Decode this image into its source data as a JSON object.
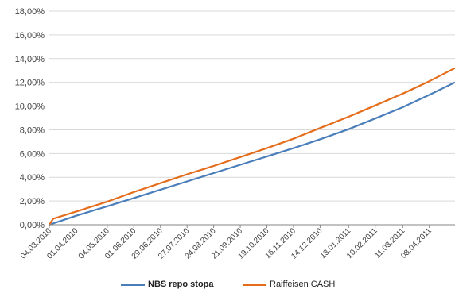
{
  "chart_data": {
    "type": "line",
    "y_ticks": [
      "0,00%",
      "2,00%",
      "4,00%",
      "6,00%",
      "8,00%",
      "10,00%",
      "12,00%",
      "14,00%",
      "16,00%",
      "18,00%"
    ],
    "ylim": [
      0,
      18
    ],
    "x_ticks": [
      "04.03.2010",
      "01.04.2010",
      "04.05.2010",
      "01.06.2010",
      "29.06.2010",
      "27.07.2010",
      "24.08.2010",
      "21.09.2010",
      "19.10.2010",
      "16.11.2010",
      "14.12.2010",
      "13.01.2011",
      "10.02.2011",
      "11.03.2011",
      "08.04.2011"
    ],
    "xlim": [
      "2010-03-04",
      "2011-05-05"
    ],
    "grid": true,
    "legend_position": "bottom",
    "series": [
      {
        "name": "NBS repo stopa",
        "color": "#4a7ebb",
        "x": [
          "2010-03-04",
          "2010-04-01",
          "2010-05-04",
          "2010-06-01",
          "2010-06-29",
          "2010-07-27",
          "2010-08-24",
          "2010-09-21",
          "2010-10-19",
          "2010-11-16",
          "2010-12-14",
          "2011-01-13",
          "2011-02-10",
          "2011-03-11",
          "2011-04-08",
          "2011-05-05"
        ],
        "values": [
          0.0,
          0.75,
          1.55,
          2.25,
          2.95,
          3.65,
          4.35,
          5.05,
          5.75,
          6.45,
          7.2,
          8.05,
          8.95,
          9.9,
          10.95,
          12.0
        ]
      },
      {
        "name": "Raiffeisen CASH",
        "color": "#e46c1a",
        "x": [
          "2010-03-04",
          "2010-03-08",
          "2010-04-01",
          "2010-05-04",
          "2010-06-01",
          "2010-06-29",
          "2010-07-27",
          "2010-08-24",
          "2010-09-21",
          "2010-10-19",
          "2010-11-16",
          "2010-12-14",
          "2011-01-13",
          "2011-02-10",
          "2011-03-11",
          "2011-04-08",
          "2011-05-05"
        ],
        "values": [
          0.0,
          0.5,
          1.1,
          1.95,
          2.75,
          3.5,
          4.25,
          4.95,
          5.7,
          6.45,
          7.25,
          8.15,
          9.1,
          10.05,
          11.05,
          12.1,
          13.2
        ]
      }
    ]
  }
}
